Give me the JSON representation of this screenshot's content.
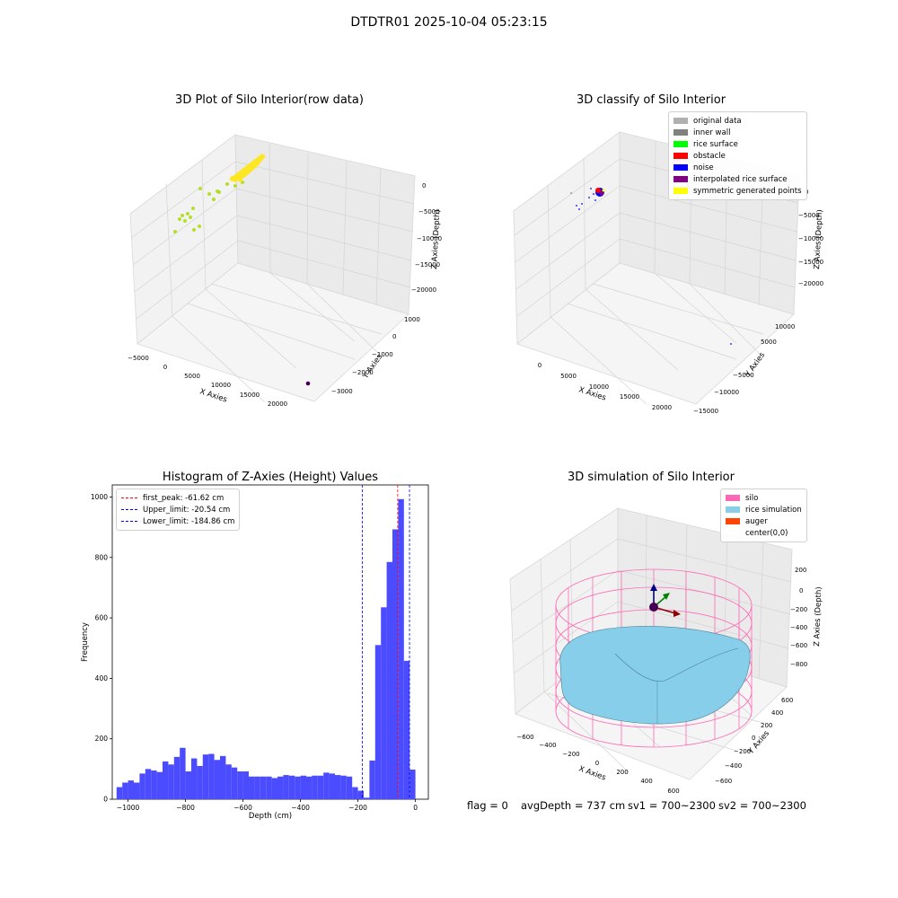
{
  "suptitle": "DTDTR01 2025-10-04 05:23:15",
  "footer": {
    "flag": "flag = 0",
    "avg_depth": "avgDepth = 737 cm",
    "sv1": "sv1 = 700~2300",
    "sv2": "sv2 = 700~2300"
  },
  "colors": {
    "yellow": "#fde725",
    "lime": "#b5de2b",
    "purple": "#440154",
    "hist": "#4b4bff",
    "silo": "#ff69b4",
    "rice": "#87ceeb",
    "auger": "#ff4500",
    "first_peak": "#ff0000",
    "limit": "#0000ff"
  },
  "chart_data": [
    {
      "type": "scatter",
      "title": "3D Plot of Silo Interior(row data)",
      "xlabel": "X Axies",
      "ylabel": "Y Axies",
      "zlabel": "Z Axies (Depth)",
      "x_ticks": [
        "−5000",
        "0",
        "5000",
        "10000",
        "15000",
        "20000"
      ],
      "y_ticks": [
        "1000",
        "0",
        "−1000",
        "−2000",
        "−3000"
      ],
      "z_ticks": [
        "0",
        "−5000",
        "−10000",
        "−15000",
        "−20000"
      ]
    },
    {
      "type": "scatter",
      "title": "3D classify of Silo Interior",
      "xlabel": "X Axies",
      "ylabel": "Y Axies",
      "zlabel": "Z Axies (Depth)",
      "x_ticks": [
        "0",
        "5000",
        "10000",
        "15000",
        "20000"
      ],
      "y_ticks": [
        "10000",
        "5000",
        "−5000",
        "−10000",
        "−15000"
      ],
      "z_ticks": [
        "0",
        "−5000",
        "−10000",
        "−15000",
        "−20000"
      ],
      "legend": [
        {
          "label": "original data",
          "color": "#b0b0b0"
        },
        {
          "label": "inner wall",
          "color": "#808080"
        },
        {
          "label": "rice surface",
          "color": "#00ff00"
        },
        {
          "label": "obstacle",
          "color": "#ff0000"
        },
        {
          "label": "noise",
          "color": "#0000ff"
        },
        {
          "label": "interpolated rice surface",
          "color": "#800080"
        },
        {
          "label": "symmetric generated points",
          "color": "#ffff00"
        }
      ]
    },
    {
      "type": "bar",
      "title": "Histogram of Z-Axies (Height) Values",
      "xlabel": "Depth (cm)",
      "ylabel": "Frequency",
      "xlim": [
        -1055,
        45
      ],
      "ylim": [
        0,
        1040
      ],
      "x_ticks": [
        -1000,
        -800,
        -600,
        -400,
        -200,
        0
      ],
      "x_tick_labels": [
        "−1000",
        "−800",
        "−600",
        "−400",
        "−200",
        "0"
      ],
      "y_ticks": [
        0,
        200,
        400,
        600,
        800,
        1000
      ],
      "bin_start": -1040,
      "bin_width": 20,
      "values": [
        40,
        55,
        62,
        55,
        85,
        100,
        95,
        90,
        125,
        115,
        140,
        170,
        92,
        135,
        110,
        148,
        150,
        130,
        143,
        115,
        105,
        92,
        92,
        75,
        75,
        75,
        75,
        70,
        75,
        80,
        78,
        75,
        78,
        75,
        78,
        78,
        88,
        85,
        80,
        78,
        75,
        40,
        28,
        5,
        128,
        510,
        635,
        785,
        893,
        993,
        458,
        98
      ],
      "lines": [
        {
          "label": "first_peak: -61.62 cm",
          "x": -61.62,
          "color": "#ff0000"
        },
        {
          "label": "Upper_limit: -20.54 cm",
          "x": -20.54,
          "color": "#0000ff"
        },
        {
          "label": "Lower_limit: -184.86 cm",
          "x": -184.86,
          "color": "#0000ff"
        }
      ]
    },
    {
      "type": "scatter",
      "title": "3D simulation of Silo Interior",
      "xlabel": "X Axies",
      "ylabel": "Y Axies",
      "zlabel": "Z Axies (Depth)",
      "x_ticks": [
        "−600",
        "−400",
        "−200",
        "0",
        "200",
        "400",
        "600"
      ],
      "y_ticks": [
        "600",
        "400",
        "200",
        "0",
        "−200",
        "−400",
        "−600"
      ],
      "z_ticks": [
        "200",
        "0",
        "−200",
        "−400",
        "−600",
        "−800"
      ],
      "legend": [
        {
          "label": "silo",
          "color": "#ff69b4"
        },
        {
          "label": "rice simulation",
          "color": "#87ceeb"
        },
        {
          "label": "auger",
          "color": "#ff4500"
        },
        {
          "label": "center(0,0)",
          "color": ""
        }
      ]
    }
  ]
}
